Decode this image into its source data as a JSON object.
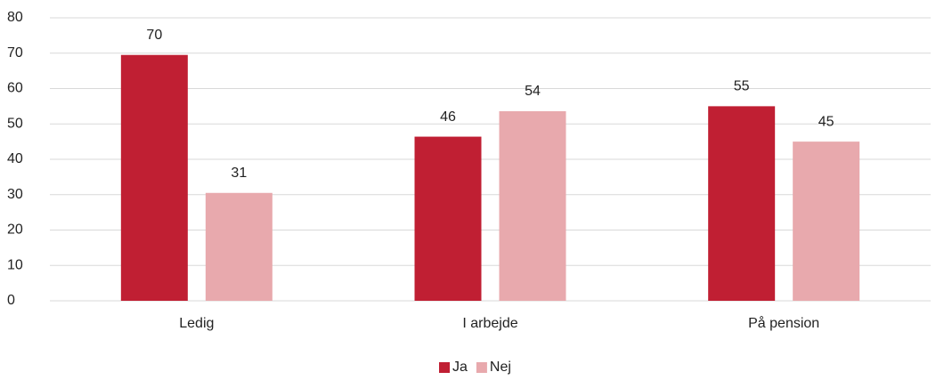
{
  "chart_data": {
    "type": "bar",
    "categories": [
      "Ledig",
      "I arbejde",
      "På pension"
    ],
    "series": [
      {
        "name": "Ja",
        "color": "#c01f33",
        "values": [
          69.5,
          46.4,
          55
        ],
        "value_labels": [
          "70",
          "46",
          "55"
        ]
      },
      {
        "name": "Nej",
        "color": "#e8a9ad",
        "values": [
          30.5,
          53.6,
          45
        ],
        "value_labels": [
          "31",
          "54",
          "45"
        ]
      }
    ],
    "ylim": [
      0,
      80
    ],
    "yticks": [
      0,
      10,
      20,
      30,
      40,
      50,
      60,
      70,
      80
    ],
    "grid": true,
    "legend": "bottom"
  }
}
